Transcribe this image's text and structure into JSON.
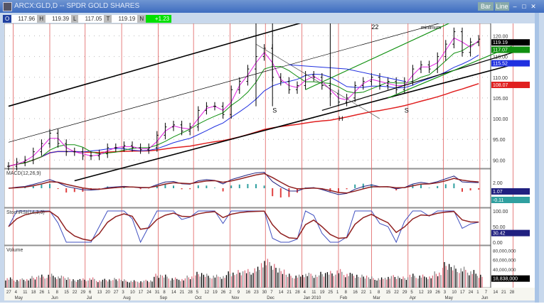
{
  "window": {
    "title": "ARCX:GLD,D -- SPDR GOLD SHARES",
    "buttons": [
      "Bar",
      "Line"
    ],
    "controls": [
      "minimize",
      "maximize",
      "close"
    ]
  },
  "quote": {
    "o_label": "O",
    "open": "117.96",
    "h_label": "H",
    "high": "119.39",
    "l_label": "L",
    "low": "117.05",
    "t_label": "T",
    "last": "119.19",
    "n_label": "N",
    "change": "+1.23"
  },
  "colors": {
    "price": "#000000",
    "ma_short": "#e020e0",
    "ma_mid": "#109010",
    "ma_long": "#2030e0",
    "ma_200": "#e02020",
    "month_line": "#e06060",
    "macd": "#202080",
    "signal": "#902020",
    "hist_pos": "#30a0a0",
    "hist_neg": "#e04040"
  },
  "chart_data": {
    "type": "line",
    "price_axis": {
      "ticks": [
        "120.00",
        "115.00",
        "110.00",
        "105.00",
        "100.00",
        "95.00",
        "90.00"
      ],
      "ylim": [
        88,
        123
      ]
    },
    "price_badges": [
      {
        "value": "119.19",
        "color": "#000000"
      },
      {
        "value": "117.07",
        "color": "#109010"
      },
      {
        "value": "115.52",
        "color": "#2030e0"
      },
      {
        "value": "108.07",
        "color": "#e02020"
      }
    ],
    "weeks_start": "2009-04-27",
    "closes": [
      88.5,
      89.5,
      90,
      92,
      94,
      96.5,
      94,
      92,
      92,
      91,
      91,
      91.5,
      93,
      93,
      93.5,
      93,
      92.5,
      93,
      96,
      98,
      98.5,
      97,
      98,
      102,
      103,
      103,
      101,
      107,
      109,
      112,
      115,
      117,
      110,
      109,
      107,
      108,
      110.5,
      110,
      108,
      106,
      104,
      105,
      108,
      109,
      110,
      108,
      109,
      107,
      109,
      112,
      113,
      112,
      115,
      118,
      121,
      116,
      118.5,
      119.2
    ],
    "volume_millions": [
      22,
      18,
      20,
      25,
      28,
      30,
      26,
      24,
      18,
      20,
      22,
      17,
      19,
      21,
      18,
      16,
      15,
      17,
      30,
      28,
      22,
      20,
      26,
      34,
      30,
      28,
      27,
      35,
      38,
      40,
      45,
      62,
      55,
      42,
      30,
      28,
      32,
      30,
      34,
      36,
      40,
      32,
      30,
      28,
      24,
      22,
      25,
      27,
      24,
      30,
      28,
      26,
      35,
      55,
      48,
      45,
      38,
      30
    ],
    "trendlines": [
      {
        "from": [
          "2009-04-27",
          103
        ],
        "to": [
          "2010-01-11",
          124
        ],
        "color": "#000000",
        "width": 1.6
      },
      {
        "from": [
          "2009-04-27",
          94.3
        ],
        "to": [
          "2010-05-10",
          124
        ],
        "color": "#000000",
        "width": 0.7
      },
      {
        "from": [
          "2009-06-22",
          85
        ],
        "to": [
          "2010-07-05",
          113.5
        ],
        "color": "#000000",
        "width": 1.6
      },
      {
        "from": [
          "2010-01-18",
          102
        ],
        "to": [
          "2010-07-05",
          116.5
        ],
        "color": "#000000",
        "width": 1.2
      },
      {
        "from": [
          "2009-11-23",
          118
        ],
        "to": [
          "2010-03-08",
          100
        ],
        "color": "#555555",
        "width": 0.7
      },
      {
        "from": [
          "2010-01-04",
          107
        ],
        "to": [
          "2010-05-17",
          124.5
        ],
        "color": "#109010",
        "width": 1.2
      },
      {
        "from": [
          "2010-03-15",
          105
        ],
        "to": [
          "2010-06-28",
          117.5
        ],
        "color": "#109010",
        "width": 1.2
      },
      {
        "from": [
          "2009-12-21",
          113
        ],
        "to": [
          "2010-02-08",
          112
        ],
        "color": "#2030e0",
        "width": 1
      },
      {
        "from": [
          "2010-02-08",
          112
        ],
        "to": [
          "2010-03-29",
          109
        ],
        "color": "#2030e0",
        "width": 1
      }
    ],
    "annotations": [
      {
        "text": "S",
        "date": "2009-12-07",
        "price": 101.5
      },
      {
        "text": "H",
        "date": "2010-02-01",
        "price": 99.5
      },
      {
        "text": "S",
        "date": "2010-03-29",
        "price": 101.5
      },
      {
        "text": "22",
        "date": "2010-03-01",
        "price": 123.5
      },
      {
        "text": "minimum",
        "date": "2010-04-12",
        "price": 123.5
      }
    ],
    "macd": {
      "label": "MACD(12,26,9)",
      "ticks": [
        "2.00"
      ],
      "badges": [
        {
          "value": "1.07",
          "color": "#202080"
        },
        {
          "value": "-0.11",
          "color": "#30a0a0"
        }
      ]
    },
    "stoch": {
      "label": "StochRSI(14,3,3)",
      "ticks": [
        "100.00",
        "50.00",
        "0.00"
      ],
      "badges": [
        {
          "value": "30.42",
          "color": "#202080"
        }
      ]
    },
    "volume": {
      "label": "Volume",
      "ticks": [
        "80,000,000",
        "60,000,000",
        "40,000,000"
      ],
      "badges": [
        {
          "value": "18,838,000",
          "color": "#000000"
        }
      ]
    },
    "x_days": [
      "27",
      "4",
      "11",
      "18",
      "26",
      "1",
      "8",
      "15",
      "22",
      "29",
      "6",
      "13",
      "20",
      "27",
      "3",
      "10",
      "17",
      "24",
      "31",
      "8",
      "14",
      "21",
      "28",
      "5",
      "12",
      "19",
      "26",
      "2",
      "9",
      "16",
      "23",
      "30",
      "7",
      "14",
      "21",
      "28",
      "4",
      "11",
      "19",
      "25",
      "1",
      "8",
      "16",
      "22",
      "1",
      "8",
      "15",
      "22",
      "29",
      "5",
      "12",
      "19",
      "26",
      "3",
      "10",
      "17",
      "24",
      "1",
      "7",
      "14",
      "21",
      "28"
    ],
    "x_months": [
      {
        "label": "May",
        "date": "2009-05-01"
      },
      {
        "label": "Jun",
        "date": "2009-06-01"
      },
      {
        "label": "Jul",
        "date": "2009-07-01"
      },
      {
        "label": "Aug",
        "date": "2009-08-01"
      },
      {
        "label": "Sep",
        "date": "2009-09-01"
      },
      {
        "label": "Oct",
        "date": "2009-10-01"
      },
      {
        "label": "Nov",
        "date": "2009-11-01"
      },
      {
        "label": "Dec",
        "date": "2009-12-01"
      },
      {
        "label": "Jan 2010",
        "date": "2010-01-01"
      },
      {
        "label": "Feb",
        "date": "2010-02-01"
      },
      {
        "label": "Mar",
        "date": "2010-03-01"
      },
      {
        "label": "Apr",
        "date": "2010-04-01"
      },
      {
        "label": "May",
        "date": "2010-05-01"
      },
      {
        "label": "Jun",
        "date": "2010-06-01"
      }
    ]
  }
}
